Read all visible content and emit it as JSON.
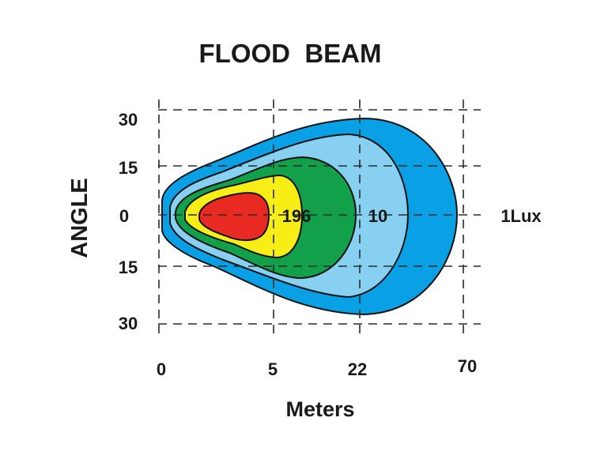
{
  "chart_data": {
    "type": "area",
    "title": "FLOOD  BEAM",
    "xlabel": "Meters",
    "ylabel": "ANGLE",
    "x_ticks": [
      "0",
      "5",
      "22",
      "70"
    ],
    "y_ticks": [
      "30",
      "15",
      "0",
      "15",
      "30"
    ],
    "grid": true,
    "contour_labels": [
      "196",
      "10",
      "1Lux"
    ],
    "zones": [
      {
        "label": "1Lux",
        "color": "#0aa0e6"
      },
      {
        "label": "",
        "color": "#88d0f2"
      },
      {
        "label": "10",
        "color": "#13a04a"
      },
      {
        "label": "",
        "color": "#f7ee16"
      },
      {
        "label": "196",
        "color": "#e82a22"
      }
    ]
  }
}
